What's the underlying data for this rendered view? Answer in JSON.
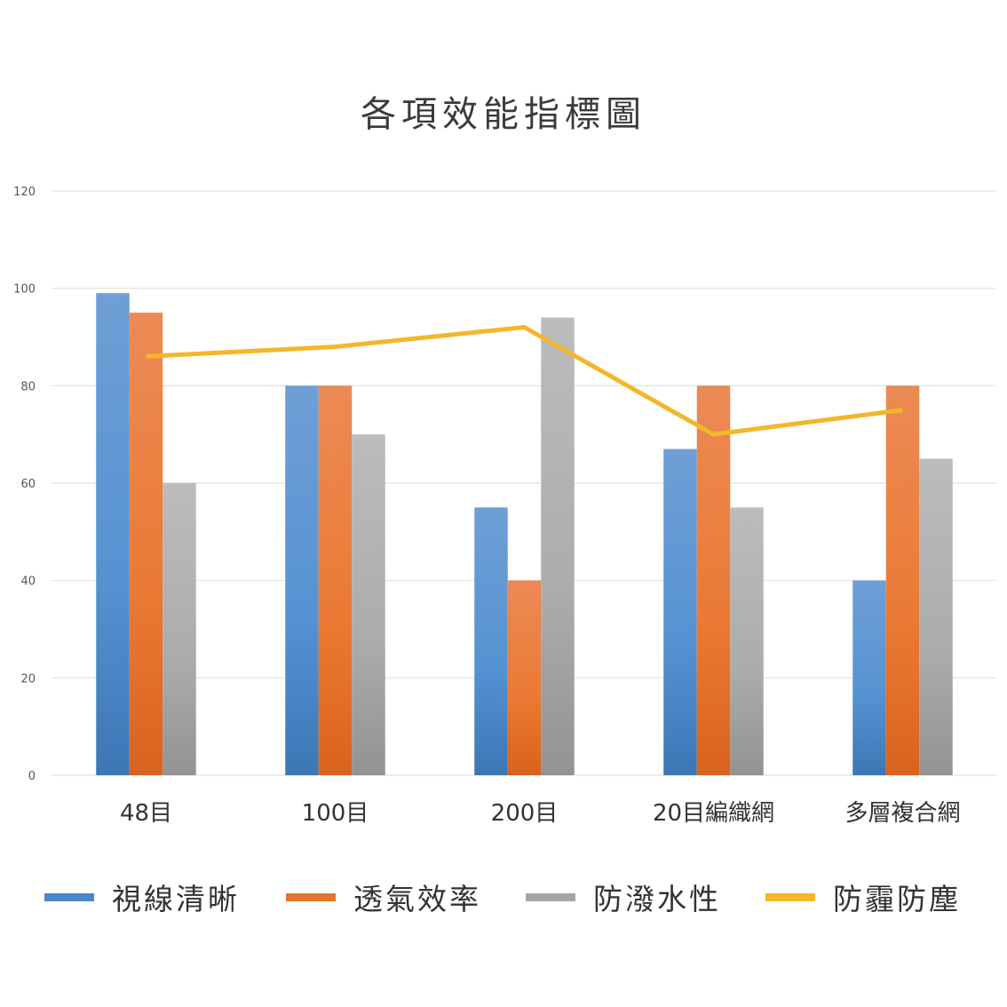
{
  "chart_data": {
    "type": "bar",
    "title": "各項效能指標圖",
    "categories": [
      "48目",
      "100目",
      "200目",
      "20目編織網",
      "多層複合網"
    ],
    "ylim": [
      0,
      120
    ],
    "yticks": [
      0,
      20,
      40,
      60,
      80,
      100,
      120
    ],
    "grid": true,
    "legend_position": "bottom",
    "series": [
      {
        "name": "視線清晰",
        "type": "bar",
        "color": "#4a86c8",
        "values": [
          99,
          80,
          55,
          67,
          40
        ]
      },
      {
        "name": "透氣效率",
        "type": "bar",
        "color": "#e8732c",
        "values": [
          95,
          80,
          40,
          80,
          80
        ]
      },
      {
        "name": "防潑水性",
        "type": "bar",
        "color": "#a5a5a5",
        "values": [
          60,
          70,
          94,
          55,
          65
        ]
      },
      {
        "name": "防霾防塵",
        "type": "line",
        "color": "#f2b72a",
        "values": [
          86,
          88,
          92,
          70,
          75
        ]
      }
    ]
  }
}
